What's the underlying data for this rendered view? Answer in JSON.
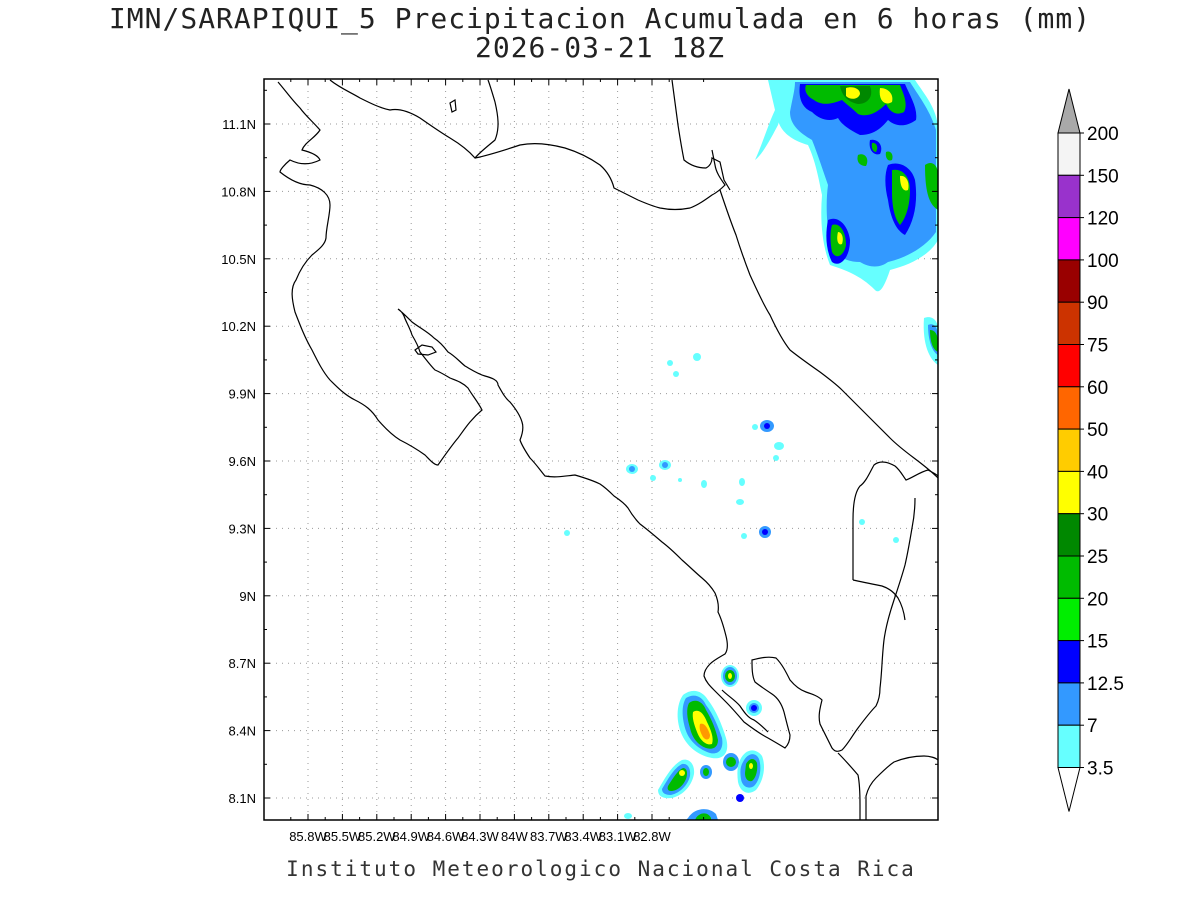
{
  "title_line1": "IMN/SARAPIQUI_5 Precipitacion Acumulada en 6 horas (mm)",
  "title_line2": "2026-03-21 18Z",
  "footer": "Instituto Meteorologico Nacional Costa Rica",
  "map": {
    "lon_range": [
      -86.03,
      -83.03
    ],
    "lat_range": [
      8.0,
      11.3
    ],
    "lon_ticks": [
      "85.8W",
      "85.5W",
      "85.2W",
      "84.9W",
      "84.6W",
      "84.3W",
      "84W",
      "83.7W",
      "83.4W",
      "83.1W",
      "82.8W"
    ],
    "lat_ticks": [
      "11.1N",
      "10.8N",
      "10.5N",
      "10.2N",
      "9.9N",
      "9.6N",
      "9.3N",
      "9N",
      "8.7N",
      "8.4N",
      "8.1N"
    ]
  },
  "colorbar": {
    "labels": [
      "200",
      "150",
      "120",
      "100",
      "90",
      "75",
      "60",
      "50",
      "40",
      "30",
      "25",
      "20",
      "15",
      "12.5",
      "7",
      "3.5"
    ],
    "colors": [
      "#f4f4f4",
      "#9932cc",
      "#ff00ff",
      "#990000",
      "#cc3300",
      "#ff0000",
      "#ff6600",
      "#ffcc00",
      "#ffff00",
      "#008800",
      "#00bb00",
      "#00ee00",
      "#0000ff",
      "#3399ff",
      "#66ffff"
    ],
    "top_triangle_color": "#a9a9a9",
    "bottom_triangle_color": "#ffffff"
  }
}
